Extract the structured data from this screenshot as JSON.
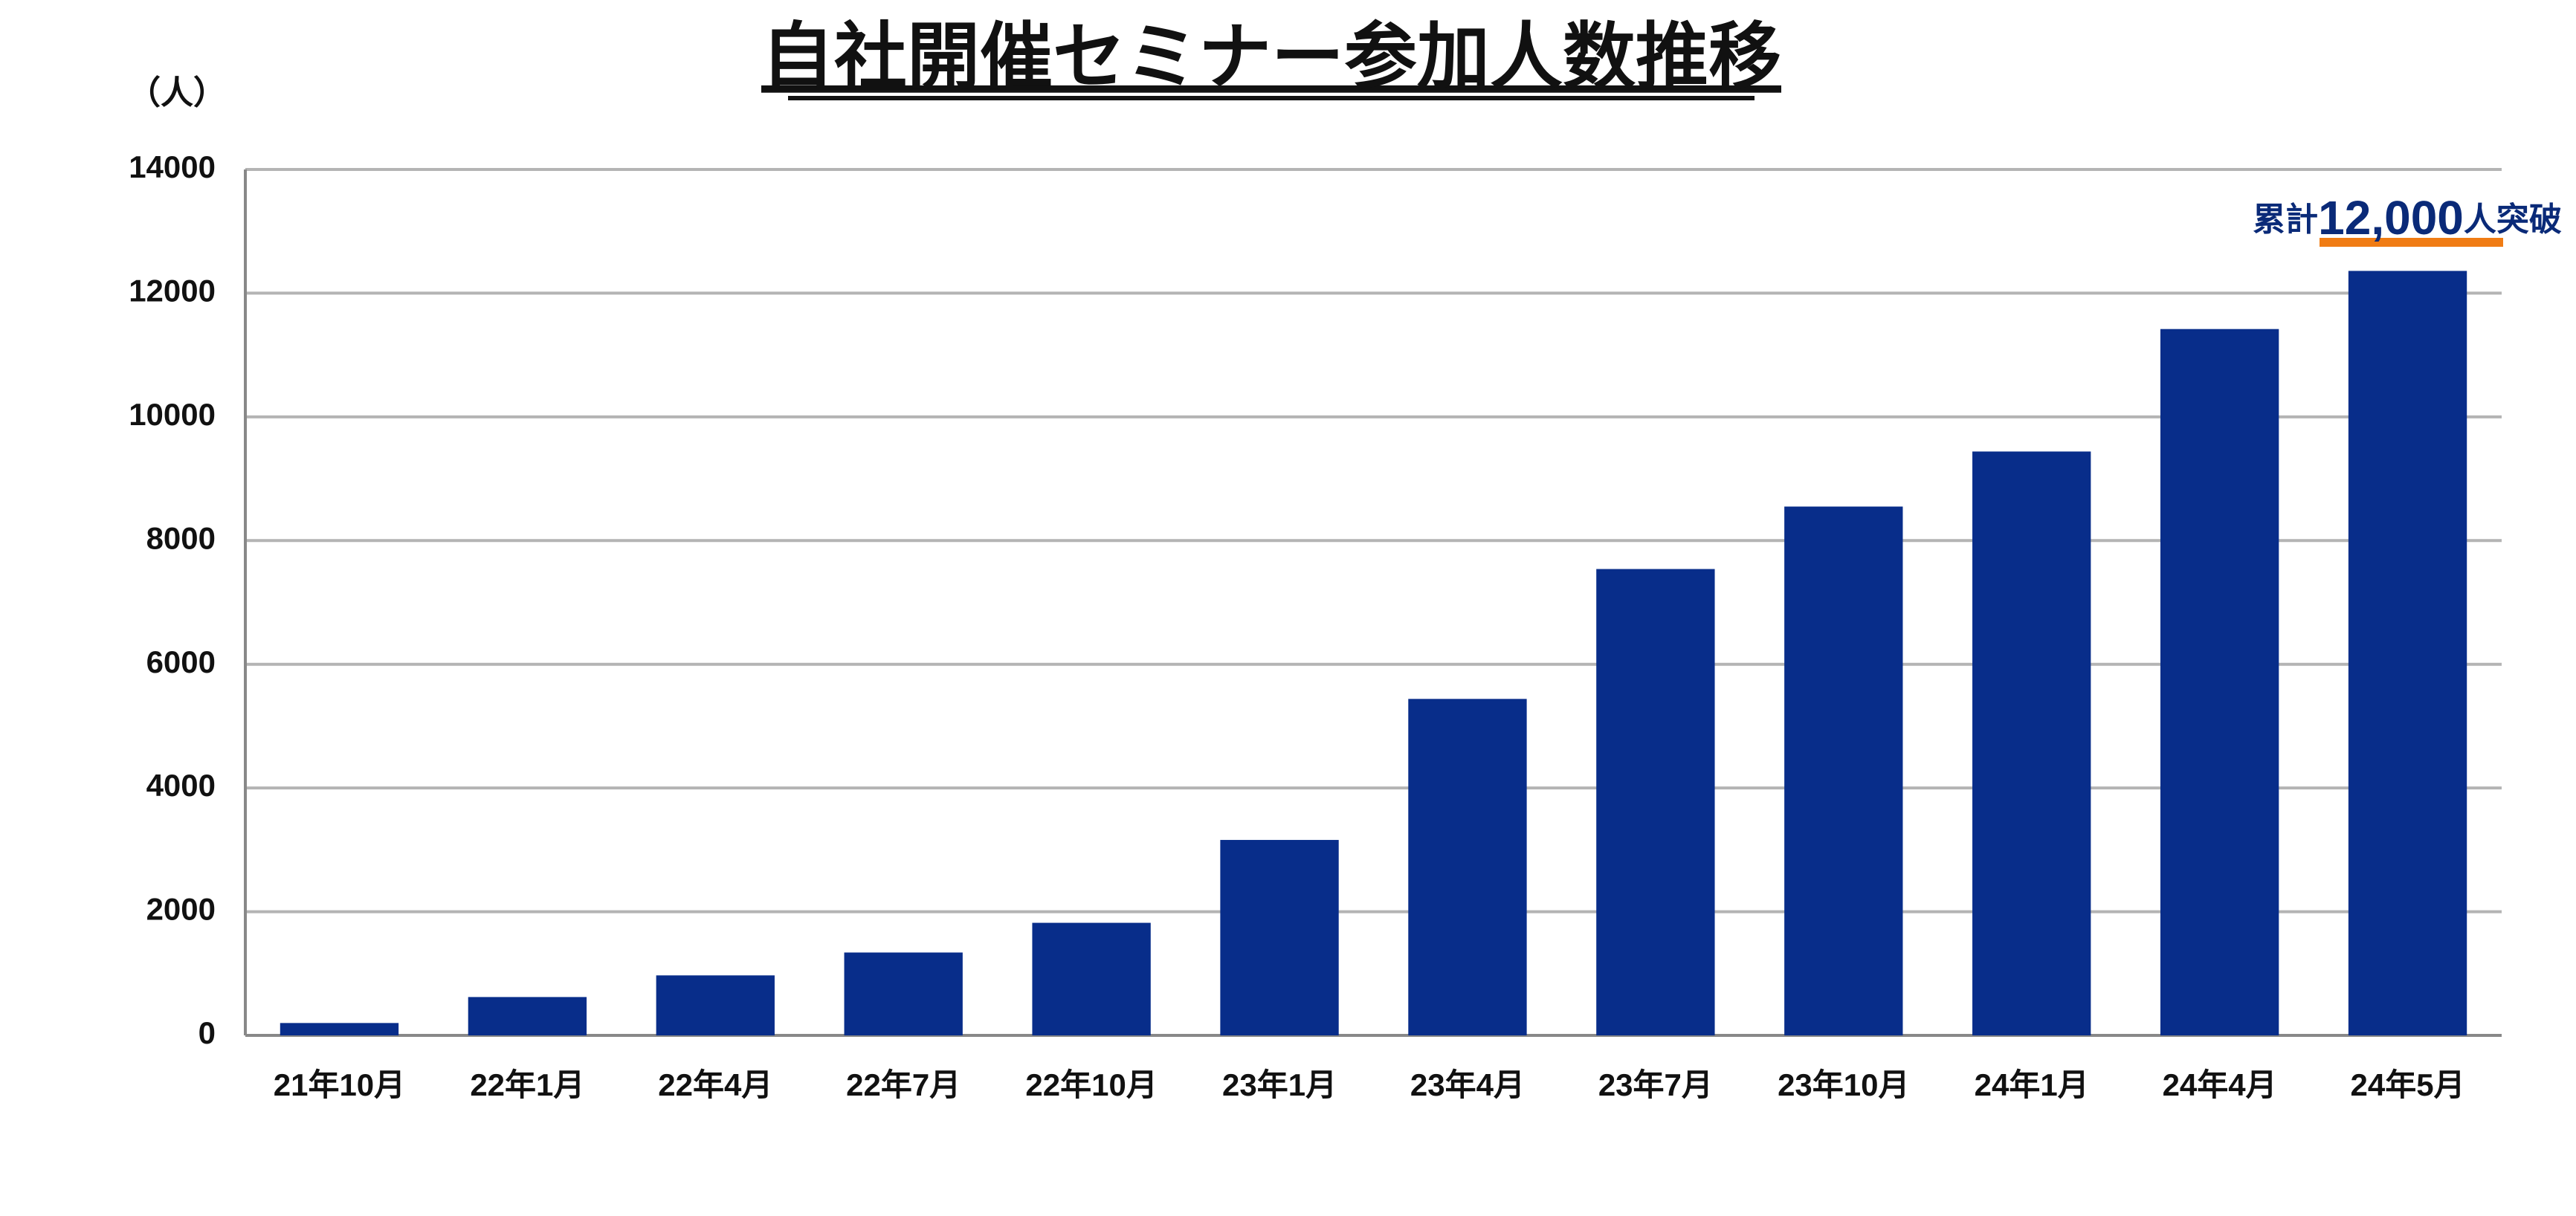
{
  "chart_data": {
    "type": "bar",
    "title": "自社開催セミナー参加人数推移",
    "y_label": "（人）",
    "annotation": [
      "累計",
      "12,000",
      "人突破"
    ],
    "categories": [
      "21年10月",
      "22年1月",
      "22年4月",
      "22年7月",
      "22年10月",
      "23年1月",
      "23年4月",
      "23年7月",
      "23年10月",
      "24年1月",
      "24年4月",
      "24年5月"
    ],
    "values": [
      200,
      620,
      970,
      1340,
      1820,
      3160,
      5440,
      7540,
      8550,
      9440,
      11420,
      12360
    ],
    "color": "#082d8a",
    "ylim": [
      0,
      14000
    ],
    "yticks": [
      0,
      2000,
      4000,
      6000,
      8000,
      10000,
      12000,
      14000
    ],
    "grid": true
  }
}
